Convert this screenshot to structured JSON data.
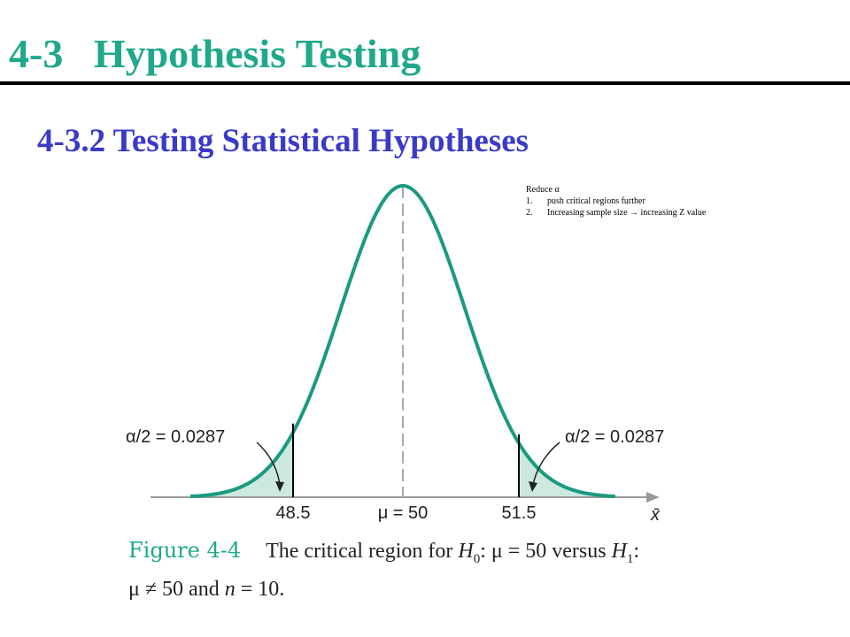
{
  "header": {
    "title": "4-3   Hypothesis Testing",
    "subtitle": "4-3.2 Testing Statistical Hypotheses"
  },
  "note": {
    "heading": "Reduce α",
    "items": [
      {
        "marker": "1.",
        "text": "push critical regions further"
      },
      {
        "marker": "2.",
        "text": "Increasing sample size → increasing Z value"
      }
    ]
  },
  "figure": {
    "left_label": "α/2 = 0.0287",
    "right_label": "α/2 = 0.0287",
    "x_labels": [
      "48.5",
      "μ = 50",
      "51.5"
    ],
    "axis_label": "x̄"
  },
  "caption": {
    "label": "Figure 4-4",
    "parts": [
      "The critical region for ",
      "H",
      "0",
      ": μ = 50 versus ",
      "H",
      "1",
      ":",
      "μ ≠ 50 and ",
      "n",
      " = 10."
    ]
  }
}
